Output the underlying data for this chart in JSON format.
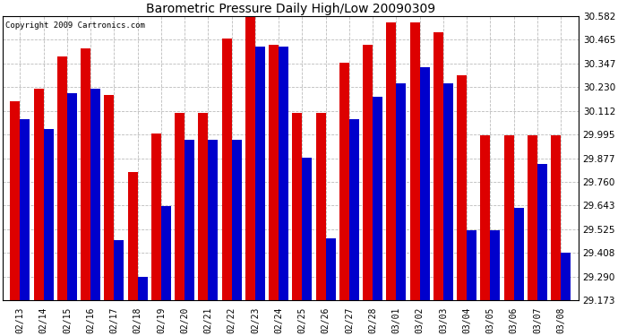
{
  "title": "Barometric Pressure Daily High/Low 20090309",
  "copyright": "Copyright 2009 Cartronics.com",
  "dates": [
    "02/13",
    "02/14",
    "02/15",
    "02/16",
    "02/17",
    "02/18",
    "02/19",
    "02/20",
    "02/21",
    "02/22",
    "02/23",
    "02/24",
    "02/25",
    "02/26",
    "02/27",
    "02/28",
    "03/01",
    "03/02",
    "03/03",
    "03/04",
    "03/05",
    "03/06",
    "03/07",
    "03/08"
  ],
  "highs": [
    30.16,
    30.22,
    30.38,
    30.42,
    30.19,
    29.81,
    30.0,
    30.1,
    30.1,
    30.47,
    30.58,
    30.44,
    30.1,
    30.1,
    30.35,
    30.44,
    30.55,
    30.55,
    30.5,
    30.29,
    29.99,
    29.99,
    29.99,
    29.99
  ],
  "lows": [
    30.07,
    30.02,
    30.2,
    30.22,
    29.47,
    29.29,
    29.64,
    29.97,
    29.97,
    29.97,
    30.43,
    30.43,
    29.88,
    29.48,
    30.07,
    30.18,
    30.25,
    30.33,
    30.25,
    29.52,
    29.52,
    29.63,
    29.85,
    29.41
  ],
  "high_color": "#dd0000",
  "low_color": "#0000cc",
  "bg_color": "#ffffff",
  "grid_color": "#bbbbbb",
  "yticks": [
    29.173,
    29.29,
    29.408,
    29.525,
    29.643,
    29.76,
    29.877,
    29.995,
    30.112,
    30.23,
    30.347,
    30.465,
    30.582
  ],
  "ymin": 29.173,
  "ymax": 30.582,
  "bar_width": 0.42,
  "figwidth": 6.9,
  "figheight": 3.75,
  "dpi": 100
}
